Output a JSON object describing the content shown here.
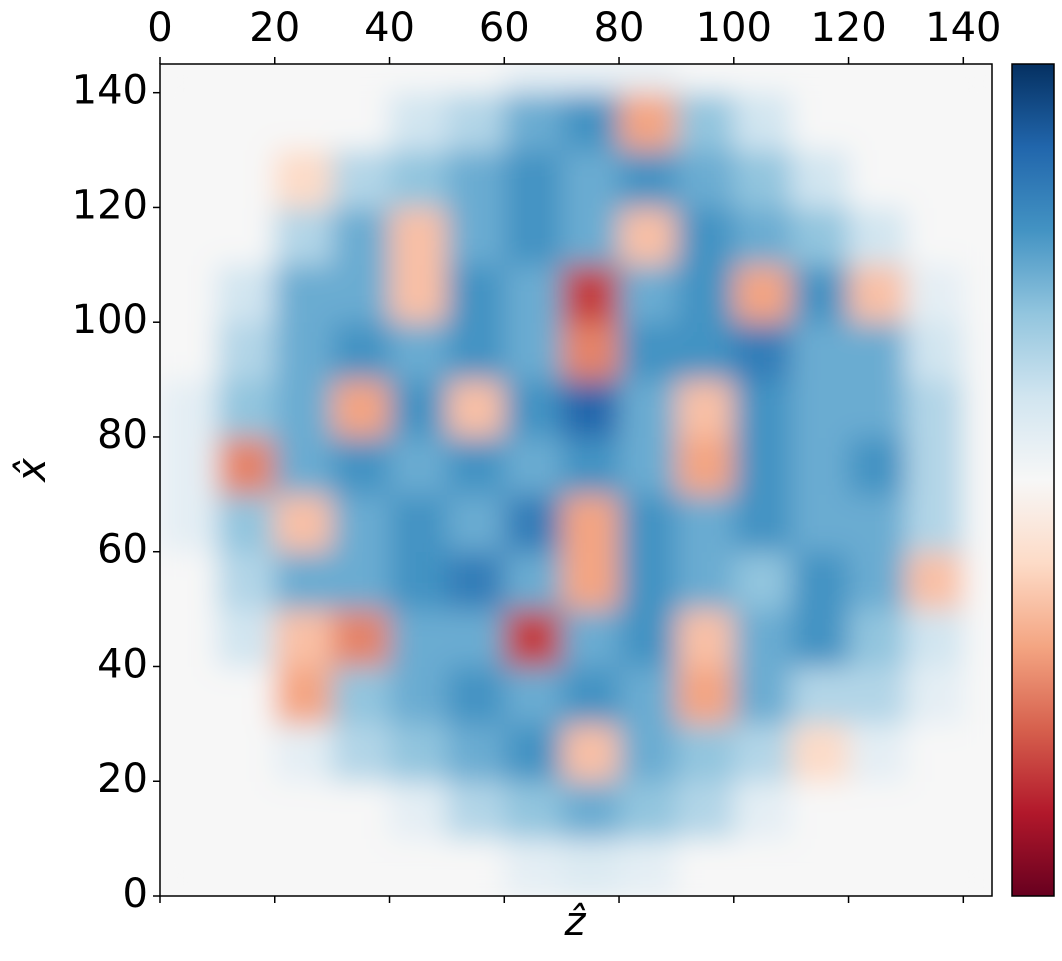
{
  "chart_data": {
    "type": "heatmap",
    "x_label": "ẑ",
    "y_label": "x̂",
    "xlim": [
      0,
      145
    ],
    "ylim": [
      0,
      145
    ],
    "xticks": [
      0,
      20,
      40,
      60,
      80,
      100,
      120,
      140
    ],
    "yticks": [
      0,
      20,
      40,
      60,
      80,
      100,
      120,
      140
    ],
    "xbins": [
      0,
      10,
      20,
      30,
      40,
      50,
      60,
      70,
      80,
      90,
      100,
      110,
      120,
      130,
      140,
      145
    ],
    "ybins": [
      0,
      10,
      20,
      30,
      40,
      50,
      60,
      70,
      80,
      90,
      100,
      110,
      120,
      130,
      140,
      145
    ],
    "clim": [
      -1,
      1
    ],
    "colormap_colors": [
      "#67001f",
      "#b2182b",
      "#d6604d",
      "#f4a582",
      "#fddbc7",
      "#f7f7f7",
      "#d1e5f0",
      "#92c5de",
      "#4393c3",
      "#2166ac",
      "#053061"
    ],
    "values": [
      [
        0,
        0,
        0,
        0,
        0,
        0,
        0.1,
        0.15,
        0.1,
        0,
        0,
        0,
        0,
        0,
        0
      ],
      [
        0,
        0,
        0,
        0,
        0.1,
        0.3,
        0.4,
        0.5,
        0.4,
        0.3,
        0.1,
        0,
        0,
        0,
        0
      ],
      [
        0,
        0,
        0.1,
        0.3,
        0.4,
        0.5,
        0.6,
        -0.3,
        0.5,
        0.4,
        0.3,
        -0.2,
        0.1,
        0,
        0
      ],
      [
        0,
        0,
        -0.4,
        0.4,
        0.5,
        0.6,
        0.5,
        0.6,
        0.5,
        -0.4,
        0.5,
        0.3,
        0.3,
        0.1,
        0
      ],
      [
        0,
        0.2,
        -0.3,
        -0.5,
        0.5,
        0.5,
        -0.7,
        0.5,
        0.6,
        -0.3,
        0.5,
        0.6,
        0.4,
        0.2,
        0
      ],
      [
        0,
        0.3,
        0.5,
        0.5,
        0.6,
        0.7,
        0.5,
        -0.4,
        0.6,
        0.5,
        0.4,
        0.6,
        0.5,
        -0.3,
        0
      ],
      [
        0.1,
        0.4,
        -0.3,
        0.5,
        0.6,
        0.5,
        0.7,
        -0.4,
        0.6,
        0.5,
        0.6,
        0.5,
        0.5,
        0.3,
        0
      ],
      [
        0.1,
        -0.5,
        0.5,
        0.6,
        0.5,
        0.6,
        0.5,
        0.6,
        0.5,
        -0.4,
        0.6,
        0.5,
        0.6,
        0.3,
        0
      ],
      [
        0.1,
        0.4,
        0.5,
        -0.4,
        0.6,
        -0.3,
        0.6,
        0.8,
        0.5,
        -0.3,
        0.6,
        0.5,
        0.5,
        0.3,
        0
      ],
      [
        0,
        0.3,
        0.5,
        0.6,
        0.5,
        0.6,
        0.5,
        -0.5,
        0.6,
        0.6,
        0.7,
        0.5,
        0.5,
        0.2,
        0
      ],
      [
        0,
        0.2,
        0.5,
        0.5,
        -0.3,
        0.6,
        0.5,
        -0.7,
        0.5,
        0.6,
        -0.4,
        0.6,
        -0.3,
        0.1,
        0
      ],
      [
        0,
        0,
        0.3,
        0.5,
        -0.3,
        0.5,
        0.6,
        0.5,
        -0.3,
        0.6,
        0.5,
        0.4,
        0.2,
        0,
        0
      ],
      [
        0,
        0,
        -0.2,
        0.3,
        0.4,
        0.5,
        0.6,
        0.5,
        0.6,
        0.5,
        0.4,
        0.2,
        0,
        0,
        0
      ],
      [
        0,
        0,
        0,
        0,
        0.2,
        0.3,
        0.5,
        0.6,
        -0.4,
        0.4,
        0.2,
        0,
        0,
        0,
        0
      ],
      [
        0,
        0,
        0,
        0,
        0,
        0,
        0.1,
        0.1,
        0.1,
        0,
        0,
        0,
        0,
        0,
        0
      ]
    ]
  }
}
